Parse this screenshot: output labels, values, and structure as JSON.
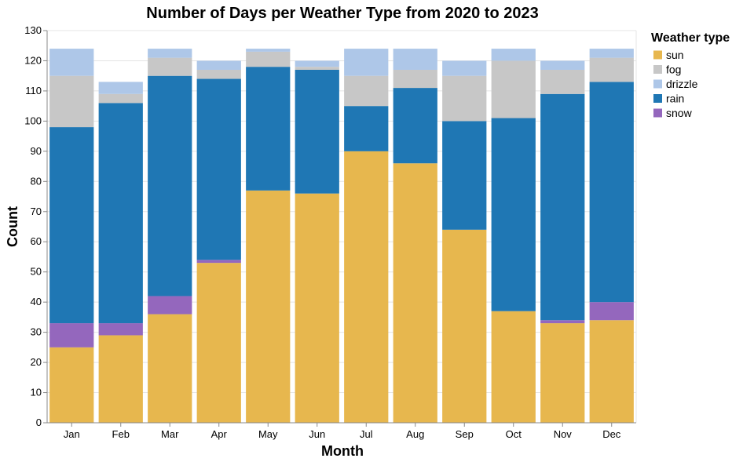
{
  "chart_data": {
    "type": "bar",
    "stacked": true,
    "title": "Number of Days per Weather Type from 2020 to 2023",
    "xlabel": "Month",
    "ylabel": "Count",
    "ylim": [
      0,
      130
    ],
    "yticks": [
      0,
      10,
      20,
      30,
      40,
      50,
      60,
      70,
      80,
      90,
      100,
      110,
      120,
      130
    ],
    "grid": true,
    "categories": [
      "Jan",
      "Feb",
      "Mar",
      "Apr",
      "May",
      "Jun",
      "Jul",
      "Aug",
      "Sep",
      "Oct",
      "Nov",
      "Dec"
    ],
    "legend": {
      "title": "Weather type",
      "position": "top-right",
      "order": [
        "sun",
        "fog",
        "drizzle",
        "rain",
        "snow"
      ]
    },
    "stack_order": [
      "sun",
      "snow",
      "rain",
      "fog",
      "drizzle"
    ],
    "series": [
      {
        "name": "sun",
        "color": "#e7b74e",
        "values": [
          25,
          29,
          36,
          53,
          77,
          76,
          90,
          86,
          64,
          37,
          33,
          34
        ]
      },
      {
        "name": "snow",
        "color": "#9467bd",
        "values": [
          8,
          4,
          6,
          1,
          0,
          0,
          0,
          0,
          0,
          0,
          1,
          6
        ]
      },
      {
        "name": "rain",
        "color": "#1f77b4",
        "values": [
          65,
          73,
          73,
          60,
          41,
          41,
          15,
          25,
          36,
          64,
          75,
          73
        ]
      },
      {
        "name": "fog",
        "color": "#c7c7c7",
        "values": [
          17,
          3,
          6,
          3,
          5,
          1,
          10,
          6,
          15,
          19,
          8,
          8
        ]
      },
      {
        "name": "drizzle",
        "color": "#aec7e8",
        "values": [
          9,
          4,
          3,
          3,
          1,
          2,
          9,
          7,
          5,
          4,
          3,
          3
        ]
      }
    ]
  }
}
